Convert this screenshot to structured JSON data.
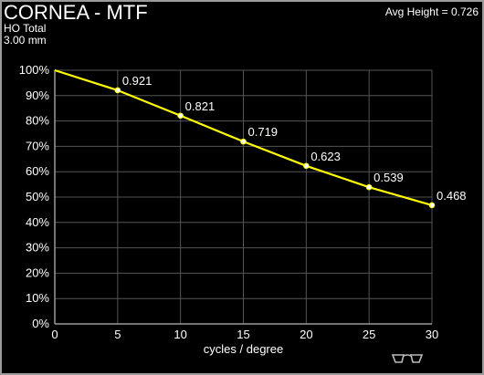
{
  "header": {
    "title": "CORNEA - MTF",
    "subtitle_line1": "HO Total",
    "subtitle_line2": "3.00 mm",
    "avg_height": "Avg Height = 0.726"
  },
  "colors": {
    "background": "#000000",
    "grid": "#555555",
    "axis": "#9a9a9a",
    "curve": "#ffff00",
    "text": "#ffffff"
  },
  "chart_data": {
    "type": "line",
    "title": "CORNEA - MTF",
    "xlabel": "cycles / degree",
    "ylabel": "",
    "xlim": [
      0,
      30
    ],
    "ylim": [
      0,
      1
    ],
    "x_ticks": [
      "0",
      "5",
      "10",
      "15",
      "20",
      "25",
      "30"
    ],
    "y_ticks": [
      "0%",
      "10%",
      "20%",
      "30%",
      "40%",
      "50%",
      "60%",
      "70%",
      "80%",
      "90%",
      "100%"
    ],
    "grid": true,
    "series": [
      {
        "x": [
          0,
          5,
          10,
          15,
          20,
          25,
          30
        ],
        "y": [
          1.0,
          0.921,
          0.821,
          0.719,
          0.623,
          0.539,
          0.468
        ],
        "labels": [
          "",
          "0.921",
          "0.821",
          "0.719",
          "0.623",
          "0.539",
          "0.468"
        ],
        "color": "#ffff00"
      }
    ]
  },
  "icons": {
    "glasses": "glasses-icon"
  }
}
